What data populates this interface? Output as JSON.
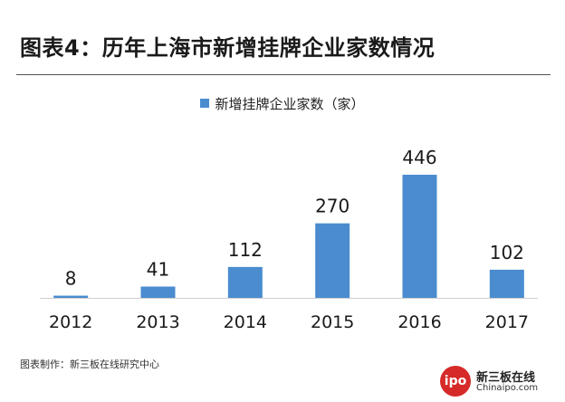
{
  "header": {
    "title": "图表4：历年上海市新增挂牌企业家数情况"
  },
  "chart_data": {
    "type": "bar",
    "categories": [
      "2012",
      "2013",
      "2014",
      "2015",
      "2016",
      "2017"
    ],
    "series": [
      {
        "name": "新增挂牌企业家数（家）",
        "values": [
          8,
          41,
          112,
          270,
          446,
          102
        ],
        "color": "#4a8ccf"
      }
    ],
    "data_labels": [
      "8",
      "41",
      "112",
      "270",
      "446",
      "102"
    ],
    "ylim": [
      0,
      446
    ],
    "legend_position": "top-center",
    "grid": false,
    "xlabel": "",
    "ylabel": ""
  },
  "footer": {
    "source": "图表制作：新三板在线研究中心"
  },
  "logo": {
    "badge": "ipo",
    "name": "新三板在线",
    "url_text": "Chinaipo.com"
  }
}
